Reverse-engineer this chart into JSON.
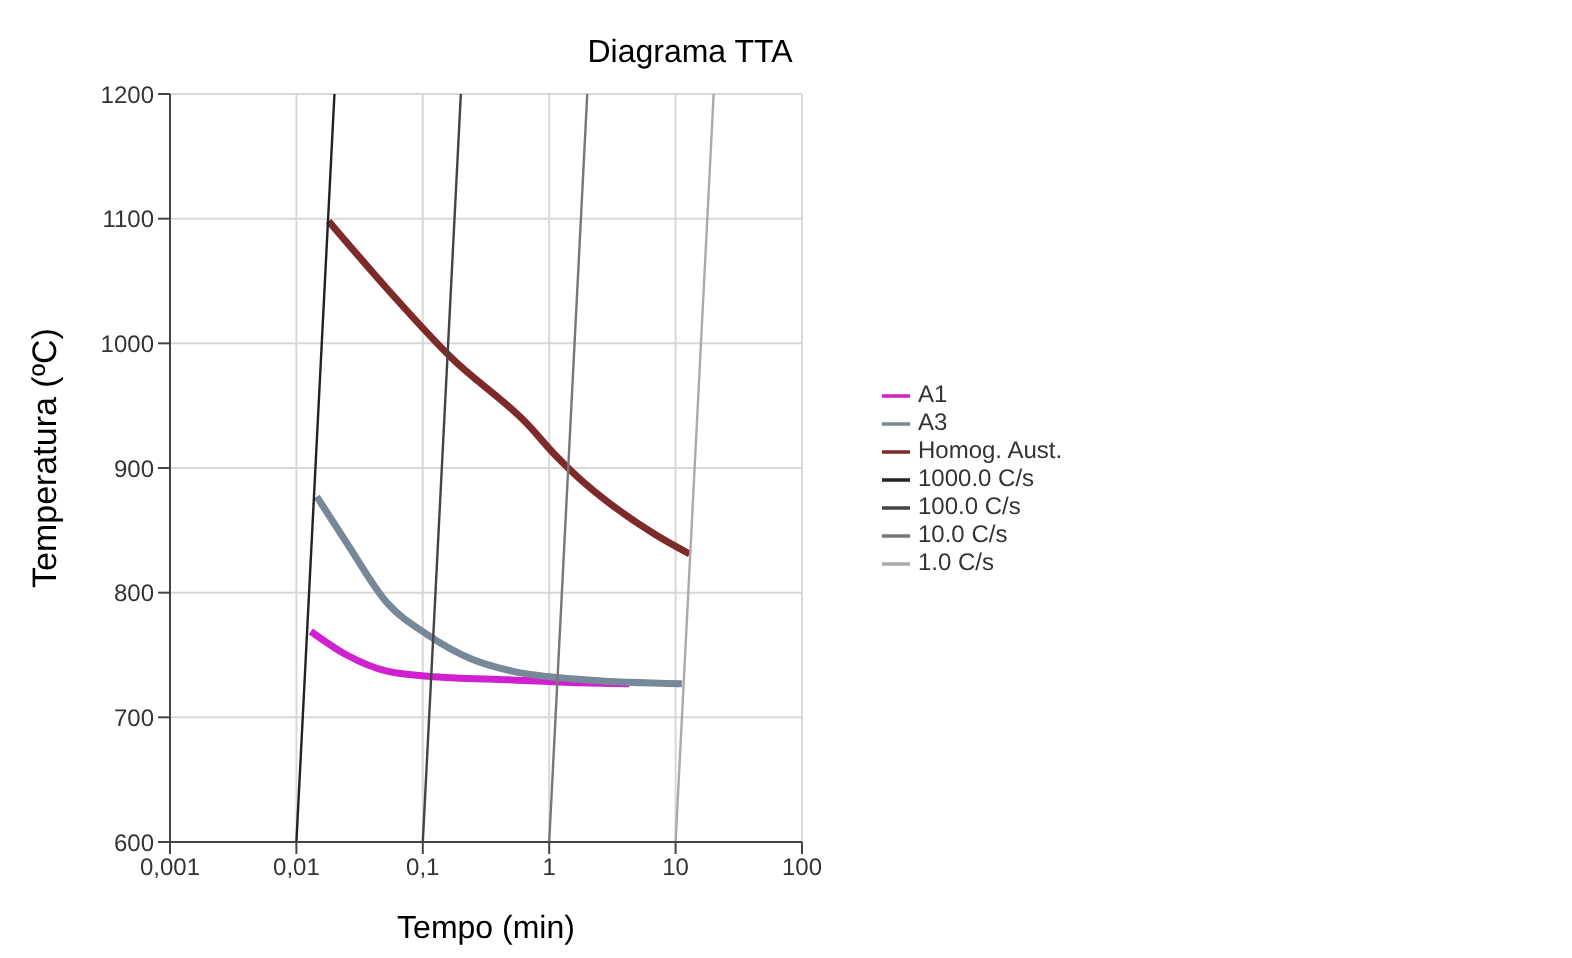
{
  "chart_data": {
    "type": "line",
    "title": "Diagrama TTA",
    "xlabel": "Tempo (min)",
    "ylabel": "Temperatura (ºC)",
    "log": "x",
    "xlim": [
      0.001,
      100
    ],
    "xticks": [
      {
        "value": 0.001,
        "label": "0,001"
      },
      {
        "value": 0.01,
        "label": "0,01"
      },
      {
        "value": 0.1,
        "label": "0,1"
      },
      1,
      10,
      100
    ],
    "ylim": [
      600,
      1200
    ],
    "yticks": [
      600,
      700,
      800,
      900,
      1000,
      1100,
      1200
    ],
    "grid": true,
    "legend": "right",
    "marker": "none",
    "series": [
      {
        "name": "A1",
        "color": "#d020d0",
        "x": [
          0.013,
          0.025,
          0.052,
          0.11,
          0.51,
          1.5,
          4.3
        ],
        "values": [
          769,
          750,
          737,
          733,
          730,
          728,
          727
        ]
      },
      {
        "name": "A3",
        "color": "#778899",
        "x": [
          0.0145,
          0.025,
          0.052,
          0.11,
          0.24,
          0.51,
          2,
          11.2
        ],
        "values": [
          877,
          840,
          792,
          766,
          747,
          737,
          730,
          727
        ]
      },
      {
        "name": "Homog. Aust.",
        "color": "#7f2a2a",
        "x": [
          0.018,
          0.052,
          0.166,
          0.69,
          1.1,
          1.48,
          6.8,
          12.9
        ],
        "values": [
          1098,
          1044,
          989,
          934,
          911,
          898,
          847,
          831
        ]
      },
      {
        "name": "1000.0 C/s",
        "color": "#222222",
        "x": [
          0.01,
          0.02
        ],
        "values": [
          600,
          1200
        ]
      },
      {
        "name": "100.0 C/s",
        "color": "#444444",
        "x": [
          0.1,
          0.2
        ],
        "values": [
          600,
          1200
        ]
      },
      {
        "name": "10.0 C/s",
        "color": "#777777",
        "x": [
          1,
          2
        ],
        "values": [
          600,
          1200
        ]
      },
      {
        "name": "1.0 C/s",
        "color": "#aaaaaa",
        "x": [
          10,
          20
        ],
        "values": [
          600,
          1200
        ]
      }
    ]
  }
}
